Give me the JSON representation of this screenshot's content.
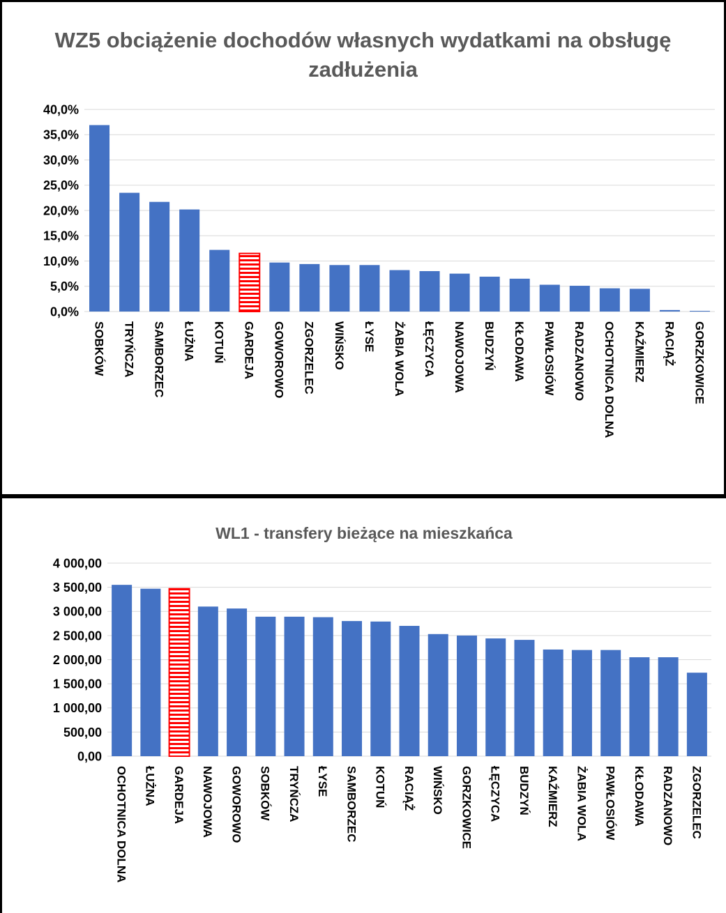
{
  "chart_data": [
    {
      "type": "bar",
      "title": "WZ5 obciążenie dochodów własnych wydatkami na obsługę zadłużenia",
      "categories": [
        "SOBKÓW",
        "TRYŃCZA",
        "SAMBORZEC",
        "ŁUŻNA",
        "KOTUŃ",
        "GARDEJA",
        "GOWOROWO",
        "ZGORZELEC",
        "WIŃSKO",
        "ŁYSE",
        "ŻABIA WOLA",
        "ŁĘCZYCA",
        "NAWOJOWA",
        "BUDZYŃ",
        "KŁODAWA",
        "PAWŁOSIÓW",
        "RADZANOWO",
        "OCHOTNICA DOLNA",
        "KAŹMIERZ",
        "RACIĄŻ",
        "GORZKOWICE"
      ],
      "values": [
        36.9,
        23.5,
        21.7,
        20.2,
        12.2,
        11.5,
        9.7,
        9.4,
        9.2,
        9.2,
        8.2,
        8.0,
        7.5,
        6.9,
        6.5,
        5.3,
        5.1,
        4.6,
        4.5,
        0.3,
        0.05
      ],
      "highlight_category": "GARDEJA",
      "ylim": [
        0,
        40
      ],
      "yticks": [
        "0,0%",
        "5,0%",
        "10,0%",
        "15,0%",
        "20,0%",
        "25,0%",
        "30,0%",
        "35,0%",
        "40,0%"
      ],
      "xlabel": "",
      "ylabel": "",
      "grid": true,
      "colors": {
        "bar": "#4472C4",
        "highlight": "#FF0000"
      }
    },
    {
      "type": "bar",
      "title": "WL1 - transfery bieżące na mieszkańca",
      "categories": [
        "OCHOTNICA DOLNA",
        "ŁUŻNA",
        "GARDEJA",
        "NAWOJOWA",
        "GOWOROWO",
        "SOBKÓW",
        "TRYŃCZA",
        "ŁYSE",
        "SAMBORZEC",
        "KOTUŃ",
        "RACIĄŻ",
        "WIŃSKO",
        "GORZKOWICE",
        "ŁĘCZYCA",
        "BUDZYŃ",
        "KAŹMIERZ",
        "ŻABIA WOLA",
        "PAWŁOSIÓW",
        "KŁODAWA",
        "RADZANOWO",
        "ZGORZELEC"
      ],
      "values": [
        3550,
        3470,
        3470,
        3100,
        3060,
        2890,
        2890,
        2880,
        2800,
        2790,
        2700,
        2530,
        2500,
        2440,
        2410,
        2210,
        2200,
        2200,
        2050,
        2050,
        1730
      ],
      "highlight_category": "GARDEJA",
      "ylim": [
        0,
        4000
      ],
      "yticks": [
        "0,00",
        "500,00",
        "1 000,00",
        "1 500,00",
        "2 000,00",
        "2 500,00",
        "3 000,00",
        "3 500,00",
        "4 000,00"
      ],
      "xlabel": "",
      "ylabel": "",
      "grid": true,
      "colors": {
        "bar": "#4472C4",
        "highlight": "#FF0000"
      }
    }
  ]
}
